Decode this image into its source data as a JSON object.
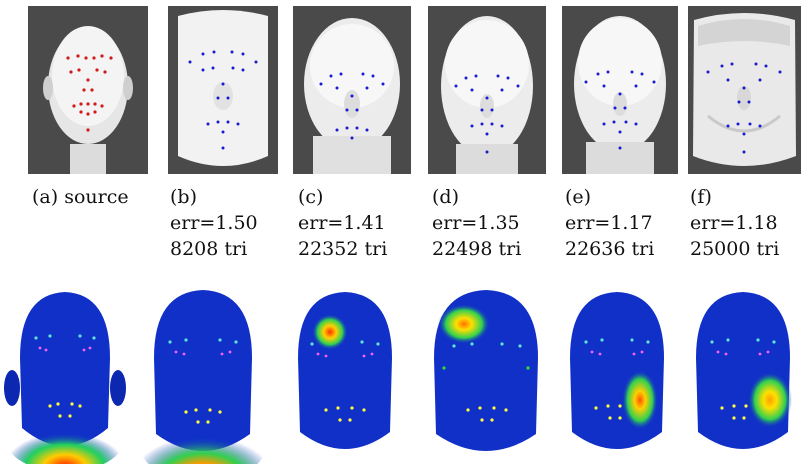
{
  "figure": {
    "panels": [
      {
        "label": "(a) source",
        "err": "",
        "tri": "",
        "landmark_color": "#d11a1a",
        "surface": "smooth"
      },
      {
        "label": "(b)",
        "err": "err=1.50",
        "tri": "8208 tri",
        "landmark_color": "#1a1ad1",
        "surface": "smooth"
      },
      {
        "label": "(c)",
        "err": "err=1.41",
        "tri": "22352 tri",
        "landmark_color": "#1a1ad1",
        "surface": "smooth"
      },
      {
        "label": "(d)",
        "err": "err=1.35",
        "tri": "22498 tri",
        "landmark_color": "#1a1ad1",
        "surface": "smooth"
      },
      {
        "label": "(e)",
        "err": "err=1.17",
        "tri": "22636 tri",
        "landmark_color": "#1a1ad1",
        "surface": "smooth"
      },
      {
        "label": "(f)",
        "err": "err=1.18",
        "tri": "25000 tri",
        "landmark_color": "#1a1ad1",
        "surface": "rough"
      }
    ],
    "heatmaps": [
      {
        "hotspot": "chin",
        "intensity": "high"
      },
      {
        "hotspot": "chin",
        "intensity": "high"
      },
      {
        "hotspot": "right-forehead",
        "intensity": "high"
      },
      {
        "hotspot": "right-forehead",
        "intensity": "medium"
      },
      {
        "hotspot": "left-cheek",
        "intensity": "medium"
      },
      {
        "hotspot": "left-cheek",
        "intensity": "medium"
      }
    ],
    "colors": {
      "background_panel": "#4a4a4a",
      "heatmap_base": "#1030c8"
    }
  }
}
